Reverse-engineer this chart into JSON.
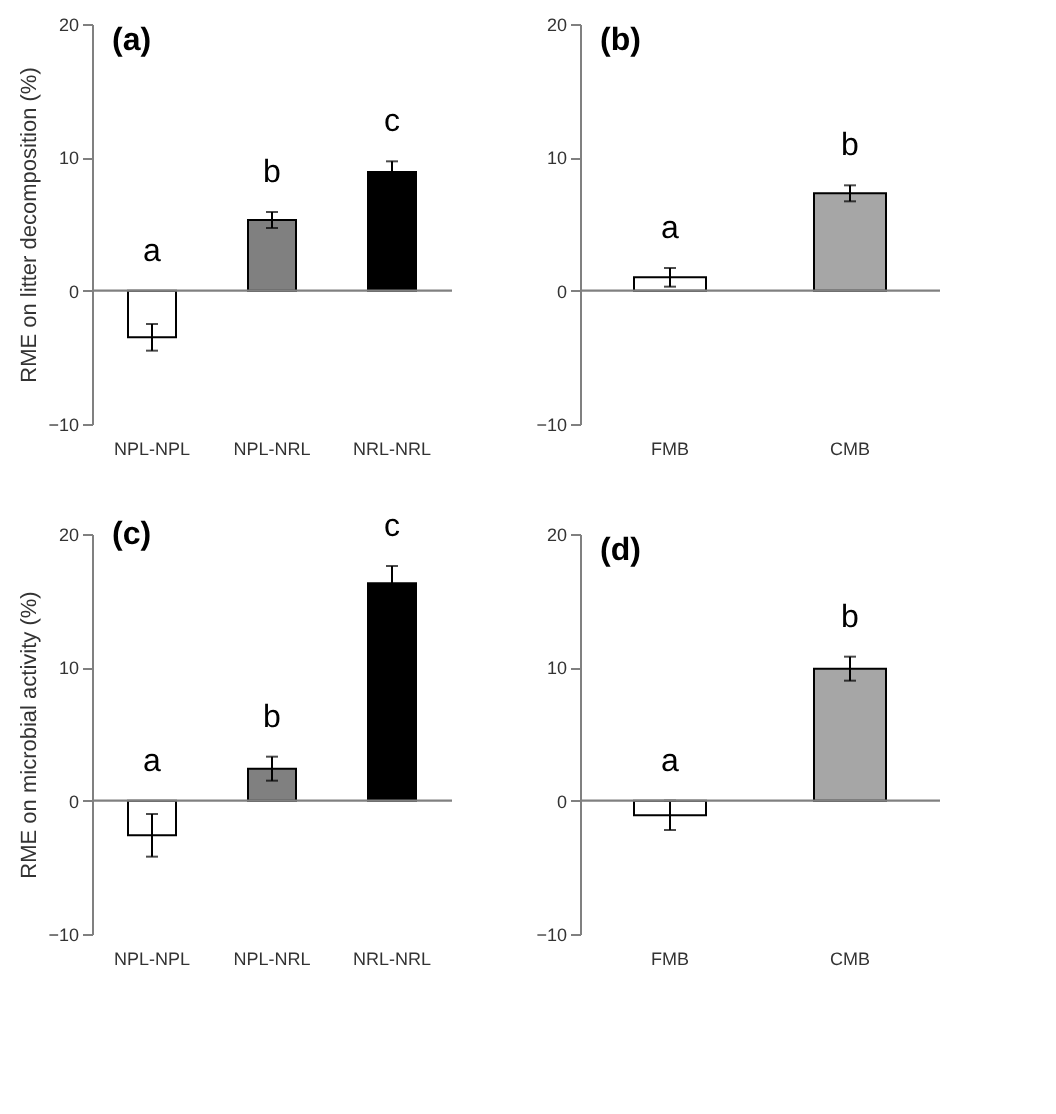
{
  "chart_data": [
    {
      "type": "bar",
      "title": "(a)",
      "ylabel": "RME on litter decomposition (%)",
      "categories": [
        "NPL-NPL",
        "NPL-NRL",
        "NRL-NRL"
      ],
      "values": [
        -3.5,
        5.3,
        8.9
      ],
      "errors": [
        1.0,
        0.6,
        0.8
      ],
      "colors": [
        "#ffffff",
        "#808080",
        "#000000"
      ],
      "ylim": [
        -10,
        20
      ],
      "yticks": [
        -10,
        0,
        10,
        20
      ],
      "grid": false,
      "ref_lines": [
        {
          "axis": "y",
          "value": 0
        }
      ],
      "annotations": [
        "a",
        "b",
        "c"
      ]
    },
    {
      "type": "bar",
      "title": "(b)",
      "categories": [
        "FMB",
        "CMB"
      ],
      "values": [
        1.0,
        7.3
      ],
      "errors": [
        0.7,
        0.6
      ],
      "colors": [
        "#ffffff",
        "#a6a6a6"
      ],
      "ylim": [
        -10,
        20
      ],
      "yticks": [
        -10,
        0,
        10,
        20
      ],
      "grid": false,
      "ref_lines": [
        {
          "axis": "y",
          "value": 0
        }
      ],
      "annotations": [
        "a",
        "b"
      ]
    },
    {
      "type": "bar",
      "title": "(c)",
      "ylabel": "RME on microbial activity (%)",
      "categories": [
        "NPL-NPL",
        "NPL-NRL",
        "NRL-NRL"
      ],
      "values": [
        -2.6,
        2.4,
        16.3
      ],
      "errors": [
        1.6,
        0.9,
        1.3
      ],
      "colors": [
        "#ffffff",
        "#808080",
        "#000000"
      ],
      "ylim": [
        -10,
        20
      ],
      "yticks": [
        -10,
        0,
        10,
        20
      ],
      "grid": false,
      "ref_lines": [
        {
          "axis": "y",
          "value": 0
        }
      ],
      "annotations": [
        "a",
        "b",
        "c"
      ]
    },
    {
      "type": "bar",
      "title": "(d)",
      "categories": [
        "FMB",
        "CMB"
      ],
      "values": [
        -1.1,
        9.9
      ],
      "errors": [
        1.1,
        0.9
      ],
      "colors": [
        "#ffffff",
        "#a6a6a6"
      ],
      "ylim": [
        -10,
        20
      ],
      "yticks": [
        -10,
        0,
        10,
        20
      ],
      "grid": false,
      "ref_lines": [
        {
          "axis": "y",
          "value": 0
        }
      ],
      "annotations": [
        "a",
        "b"
      ]
    }
  ]
}
